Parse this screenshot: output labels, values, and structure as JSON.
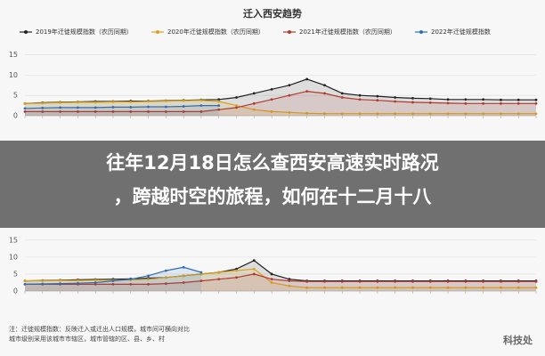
{
  "chart_data": [
    {
      "type": "line",
      "title": "迁入西安趋势",
      "categories": [
        null,
        null,
        null,
        null,
        null,
        null,
        null,
        null,
        null,
        null,
        null,
        null,
        null,
        null,
        null,
        null,
        null,
        null,
        null,
        null,
        null,
        null,
        null,
        null,
        null,
        null,
        null,
        null,
        null,
        null
      ],
      "ylim": [
        0,
        16
      ],
      "yticks": [
        0,
        5,
        10,
        15
      ],
      "grid": true,
      "series": [
        {
          "name": "2019年迁徙规模指数（农历同期）",
          "color": "#222222",
          "values": [
            3,
            3.2,
            3.3,
            3.4,
            3.5,
            3.5,
            3.6,
            3.6,
            3.7,
            3.8,
            3.9,
            4,
            4.5,
            5.5,
            6.5,
            7.5,
            9,
            7.5,
            5.5,
            5,
            4.8,
            4.5,
            4.3,
            4.2,
            4,
            4,
            4,
            3.9,
            3.9,
            3.9
          ]
        },
        {
          "name": "2020年迁徙规模指数（农历同期）",
          "color": "#d9a21b",
          "values": [
            3,
            3.1,
            3.2,
            3.3,
            3.3,
            3.4,
            3.4,
            3.5,
            3.6,
            3.7,
            3.8,
            3.5,
            2.5,
            1.5,
            1,
            0.8,
            0.6,
            0.5,
            0.5,
            0.5,
            0.5,
            0.5,
            0.5,
            0.5,
            0.5,
            0.5,
            0.5,
            0.5,
            0.5,
            0.5
          ]
        },
        {
          "name": "2021年迁徙规模指数（农历同期）",
          "color": "#b03a2e",
          "values": [
            1,
            1,
            1,
            1,
            1,
            1,
            1,
            1,
            1,
            1,
            1,
            1.5,
            2,
            3,
            4,
            5,
            6,
            5.5,
            4.5,
            4,
            3.8,
            3.5,
            3.3,
            3.2,
            3.1,
            3,
            3,
            3,
            3,
            3
          ]
        },
        {
          "name": "2022年迁徙规模指数",
          "color": "#2f6db5",
          "values": [
            1.8,
            1.9,
            2,
            2,
            2,
            2.1,
            2.1,
            2.2,
            2.2,
            2.3,
            2.5,
            2.5,
            null,
            null,
            null,
            null,
            null,
            null,
            null,
            null,
            null,
            null,
            null,
            null,
            null,
            null,
            null,
            null,
            null,
            null
          ]
        }
      ]
    },
    {
      "type": "line",
      "categories": [
        null,
        null,
        null,
        null,
        null,
        null,
        null,
        null,
        null,
        null,
        null,
        null,
        null,
        null,
        null,
        null,
        null,
        null,
        null,
        null,
        null,
        null,
        null,
        null,
        null,
        null,
        null,
        null,
        null,
        null
      ],
      "ylim": [
        0,
        16
      ],
      "yticks": [
        0,
        5,
        10,
        15
      ],
      "grid": true,
      "series": [
        {
          "color": "#222222",
          "values": [
            3,
            3.1,
            3.2,
            3.3,
            3.4,
            3.5,
            3.6,
            3.8,
            4,
            4.5,
            5,
            5.5,
            6.5,
            9,
            5,
            3.5,
            3,
            3,
            3,
            3,
            3,
            3,
            3,
            3,
            3,
            3,
            3,
            3,
            3,
            3
          ]
        },
        {
          "color": "#d9a21b",
          "values": [
            3,
            3,
            3.1,
            3.1,
            3.2,
            3.2,
            3.3,
            3.5,
            4,
            4.5,
            5,
            5.5,
            6,
            6.5,
            2.5,
            1.5,
            1,
            1,
            1,
            1,
            1,
            1,
            1,
            1,
            1,
            1,
            1,
            1,
            1,
            1
          ]
        },
        {
          "color": "#b03a2e",
          "values": [
            2,
            2,
            2,
            2,
            2,
            2,
            2,
            2,
            2.2,
            2.5,
            3,
            3.5,
            4,
            5,
            3.5,
            3,
            2.8,
            2.8,
            2.8,
            2.8,
            2.8,
            2.8,
            2.8,
            2.8,
            2.8,
            2.8,
            2.8,
            2.8,
            2.8,
            2.8
          ]
        },
        {
          "color": "#2f6db5",
          "values": [
            2,
            2.1,
            2.2,
            2.3,
            2.5,
            3,
            3.5,
            4.5,
            6,
            7,
            5.5,
            null,
            null,
            null,
            null,
            null,
            null,
            null,
            null,
            null,
            null,
            null,
            null,
            null,
            null,
            null,
            null,
            null,
            null,
            null
          ]
        }
      ]
    }
  ],
  "overlay": {
    "line1": "往年12月18日怎么查西安高速实时路况",
    "line2": "，跨越时空的旅程，如何在十二月十八"
  },
  "notes": [
    "注：迁徙规模指数：反映迁入或迁出人口规模，城市间可横向对比",
    "城市级别采用该城市市辖区，城市管辖的区、县、乡、村"
  ],
  "watermark": "科技处"
}
